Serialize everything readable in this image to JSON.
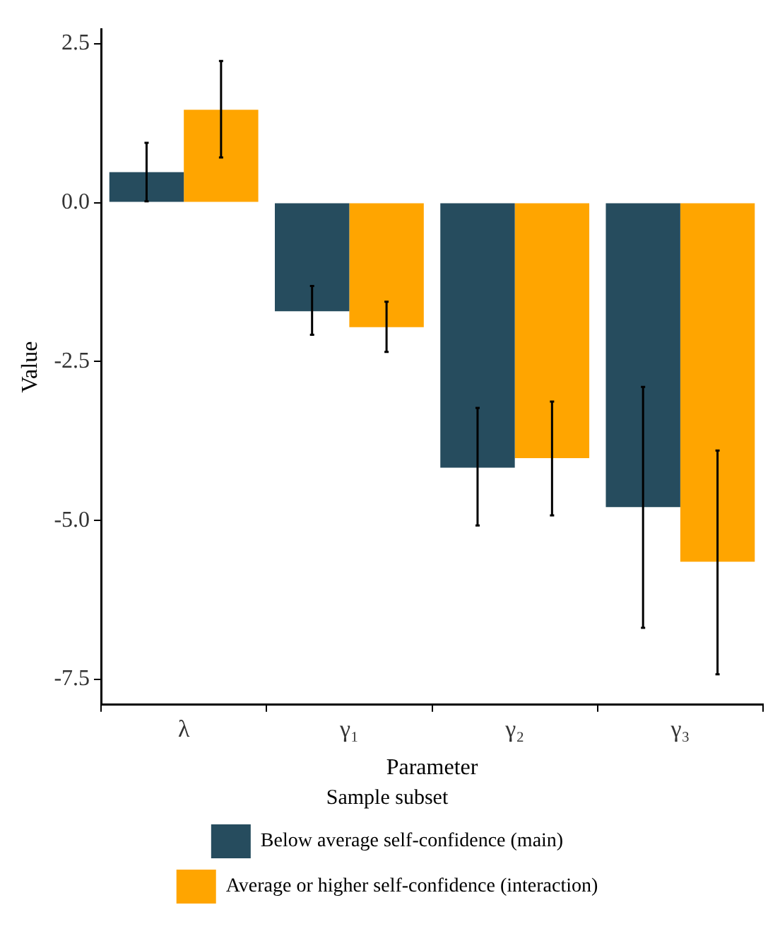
{
  "chart_data": {
    "type": "bar",
    "xlabel": "Parameter",
    "ylabel": "Value",
    "legend_title": "Sample subset",
    "categories": [
      "λ",
      "γ₁",
      "γ₂",
      "γ₃"
    ],
    "series": [
      {
        "name": "Below average self-confidence (main)",
        "color": "#264c5e",
        "values": [
          0.48,
          -1.71,
          -4.17,
          -4.79
        ],
        "errors": [
          [
            0.02,
            0.94
          ],
          [
            -2.08,
            -1.31
          ],
          [
            -5.08,
            -3.23
          ],
          [
            -6.69,
            -2.9
          ]
        ]
      },
      {
        "name": "Average or higher self-confidence (interaction)",
        "color": "#ffa500",
        "values": [
          1.46,
          -1.96,
          -4.02,
          -5.65
        ],
        "errors": [
          [
            0.71,
            2.23
          ],
          [
            -2.35,
            -1.56
          ],
          [
            -4.92,
            -3.13
          ],
          [
            -7.42,
            -3.9
          ]
        ]
      }
    ],
    "ylim": [
      -7.9,
      2.73
    ],
    "yticks": [
      2.5,
      {
        "value": 0,
        "label": "0.0"
      },
      -2.5,
      {
        "value": -5,
        "label": "-5.0"
      },
      -7.5
    ],
    "grid": false,
    "legend": "bottom"
  }
}
